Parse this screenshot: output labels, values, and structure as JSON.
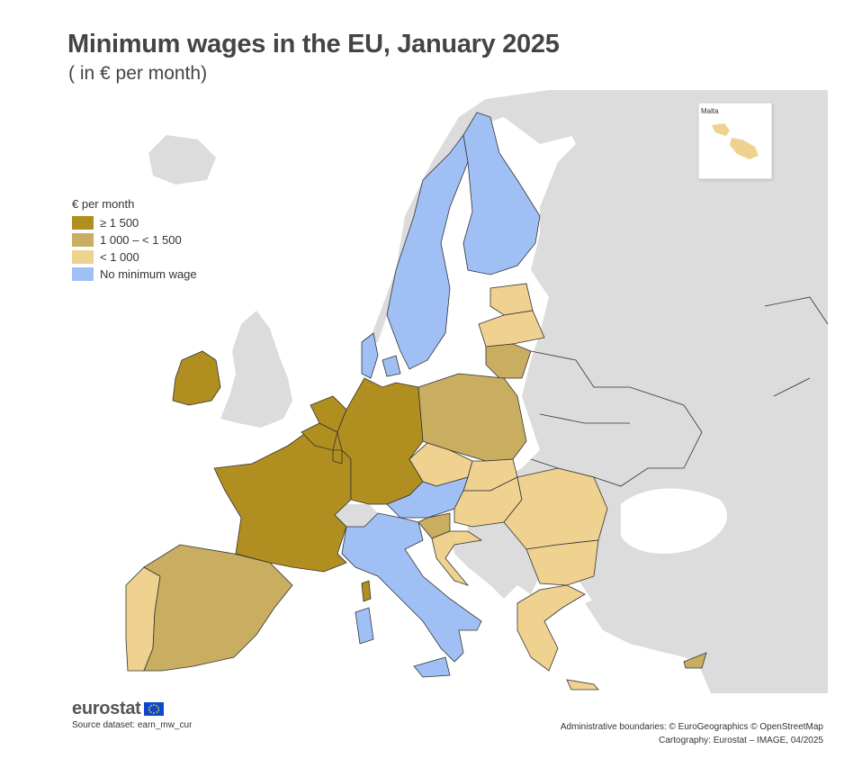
{
  "title": "Minimum wages in the EU, January 2025",
  "subtitle": "( in € per month)",
  "legend": {
    "title": "€ per month",
    "items": [
      {
        "label": "≥ 1 500",
        "color": "#b08e1f"
      },
      {
        "label": "1 000 – < 1 500",
        "color": "#c9ad60"
      },
      {
        "label": "< 1 000",
        "color": "#efd190"
      },
      {
        "label": "No minimum wage",
        "color": "#a0c0f5"
      }
    ]
  },
  "colors": {
    "non_eu": "#dcdcdc",
    "sea": "#ffffff",
    "border": "#333333"
  },
  "inset": {
    "label": "Malta"
  },
  "logo": {
    "text": "eurostat"
  },
  "source": "Source dataset: earn_mw_cur",
  "credits": {
    "line1": "Administrative boundaries: © EuroGeographics © OpenStreetMap",
    "line2": "Cartography: Eurostat – IMAGE, 04/2025"
  },
  "map_data": {
    "categories": {
      "ge_1500": [
        "Ireland",
        "France",
        "Belgium",
        "Netherlands",
        "Luxembourg",
        "Germany"
      ],
      "1000_1500": [
        "Spain",
        "Poland",
        "Slovenia",
        "Lithuania",
        "Cyprus"
      ],
      "lt_1000": [
        "Portugal",
        "Malta",
        "Czechia",
        "Slovakia",
        "Hungary",
        "Croatia",
        "Romania",
        "Bulgaria",
        "Greece",
        "Latvia",
        "Estonia"
      ],
      "no_minimum_wage": [
        "Sweden",
        "Finland",
        "Denmark",
        "Austria",
        "Italy"
      ]
    }
  }
}
